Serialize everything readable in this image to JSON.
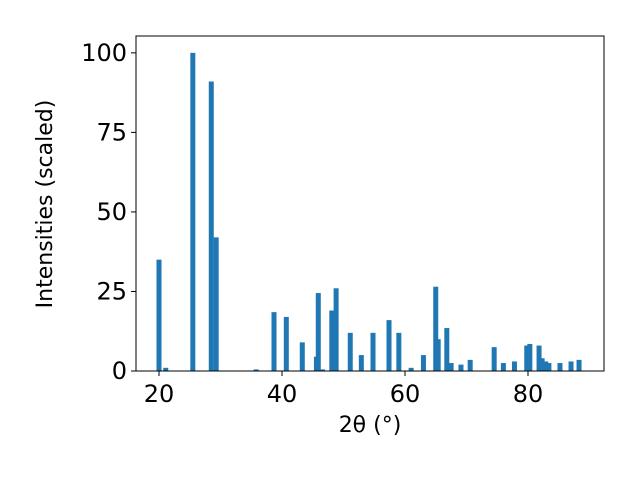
{
  "chart_data": {
    "type": "bar",
    "xlabel": "2θ (°)",
    "ylabel": "Intensities (scaled)",
    "x": [
      20.0,
      21.1,
      25.5,
      28.5,
      29.3,
      35.8,
      38.7,
      40.7,
      43.3,
      45.6,
      45.9,
      46.6,
      48.1,
      48.8,
      51.1,
      52.9,
      54.8,
      57.4,
      59.0,
      61.0,
      63.0,
      65.0,
      65.4,
      66.8,
      67.5,
      69.1,
      70.6,
      74.5,
      76.0,
      77.8,
      79.8,
      80.3,
      81.8,
      82.3,
      82.9,
      83.4,
      85.2,
      87.0,
      88.3
    ],
    "values": [
      35,
      1,
      100,
      91,
      42,
      0.5,
      18.5,
      17,
      9,
      4.5,
      24.5,
      0.5,
      19,
      26,
      12,
      5,
      12,
      16,
      12,
      1,
      5,
      26.5,
      10,
      13.5,
      2.5,
      2,
      3.5,
      7.5,
      2.5,
      3,
      8,
      8.5,
      8,
      4,
      3,
      2.5,
      2.5,
      3,
      3.5
    ],
    "color": "#1f77b4",
    "xlim": [
      16.26,
      92.36
    ],
    "xticks": [
      20,
      40,
      60,
      80
    ],
    "ylim": [
      0,
      105.3
    ],
    "yticks": [
      0,
      25,
      50,
      75,
      100
    ]
  }
}
